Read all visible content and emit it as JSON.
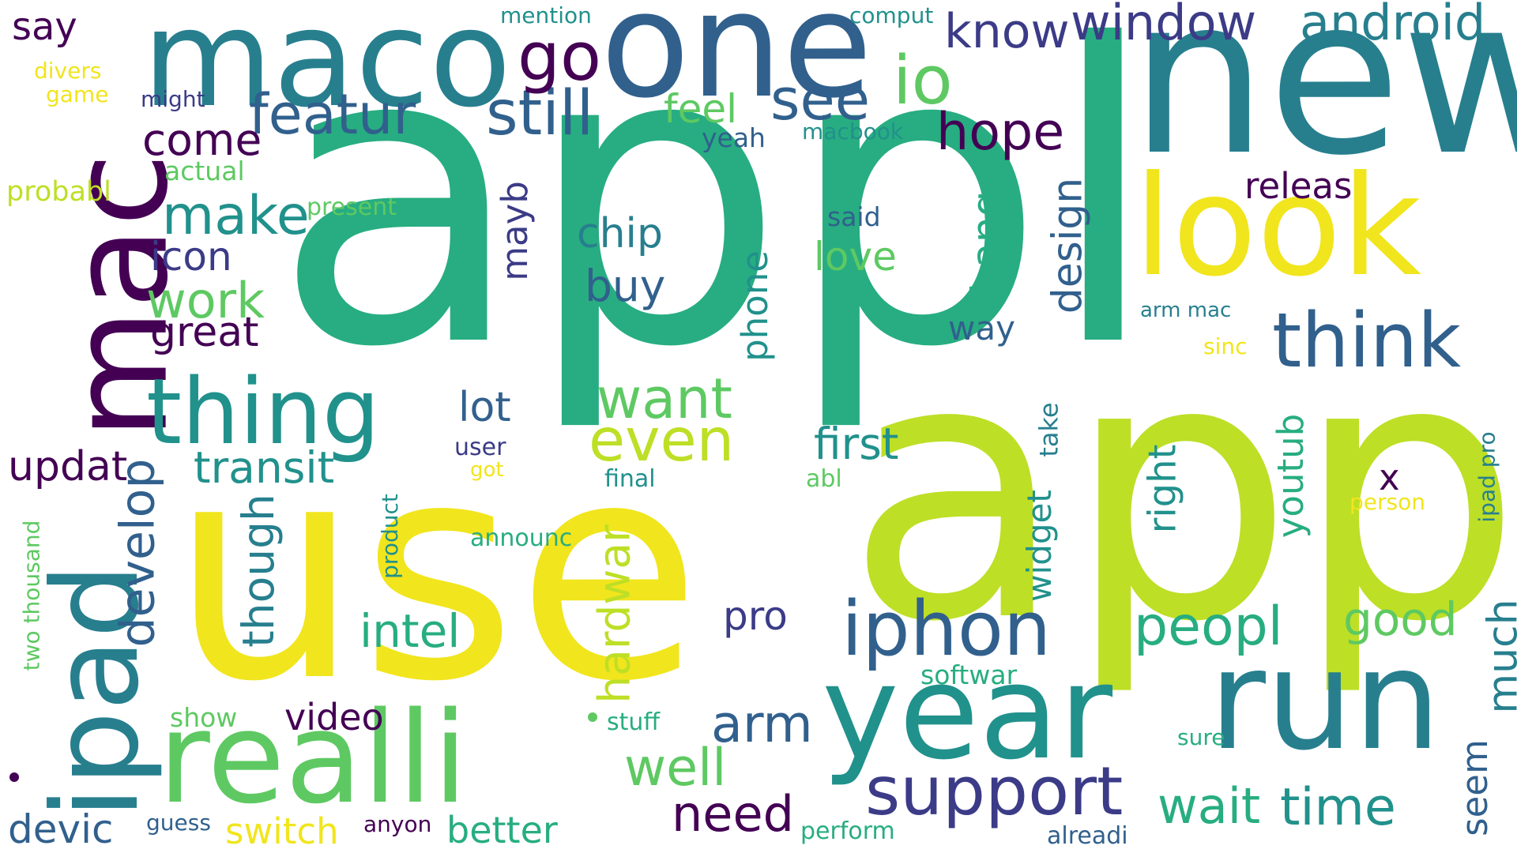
{
  "palette": {
    "dark_purple": "#440154",
    "indigo": "#3b3b87",
    "blue": "#31608d",
    "teal_blue": "#277f8e",
    "teal": "#21918c",
    "green_teal": "#27ad81",
    "green": "#5ec962",
    "lime": "#bddf26",
    "yellow": "#f1e51d"
  },
  "words": [
    {
      "text": "appl",
      "color": "#27ad81"
    },
    {
      "text": "app",
      "color": "#bddf26"
    },
    {
      "text": "use",
      "color": "#f1e51d"
    },
    {
      "text": "new",
      "color": "#277f8e"
    },
    {
      "text": "mac",
      "color": "#440154"
    },
    {
      "text": "maco",
      "color": "#277f8e"
    },
    {
      "text": "one",
      "color": "#31608d"
    },
    {
      "text": "look",
      "color": "#f1e51d"
    },
    {
      "text": "ipad",
      "color": "#277f8e"
    },
    {
      "text": "realli",
      "color": "#5ec962"
    },
    {
      "text": "year",
      "color": "#21918c"
    },
    {
      "text": "run",
      "color": "#277f8e"
    },
    {
      "text": "thing",
      "color": "#21918c"
    },
    {
      "text": "think",
      "color": "#31608d"
    },
    {
      "text": "iphon",
      "color": "#31608d"
    },
    {
      "text": "support",
      "color": "#3b3b87"
    },
    {
      "text": "featur",
      "color": "#31608d"
    },
    {
      "text": "still",
      "color": "#31608d"
    },
    {
      "text": "go",
      "color": "#440154"
    },
    {
      "text": "see",
      "color": "#31608d"
    },
    {
      "text": "io",
      "color": "#5ec962"
    },
    {
      "text": "know",
      "color": "#3b3b87"
    },
    {
      "text": "window",
      "color": "#3b3b87"
    },
    {
      "text": "android",
      "color": "#277f8e"
    },
    {
      "text": "hope",
      "color": "#440154"
    },
    {
      "text": "want",
      "color": "#5ec962"
    },
    {
      "text": "even",
      "color": "#bddf26"
    },
    {
      "text": "make",
      "color": "#21918c"
    },
    {
      "text": "work",
      "color": "#5ec962"
    },
    {
      "text": "come",
      "color": "#440154"
    },
    {
      "text": "great",
      "color": "#440154"
    },
    {
      "text": "icon",
      "color": "#3b3b87"
    },
    {
      "text": "chip",
      "color": "#277f8e"
    },
    {
      "text": "buy",
      "color": "#31608d"
    },
    {
      "text": "love",
      "color": "#5ec962"
    },
    {
      "text": "first",
      "color": "#21918c"
    },
    {
      "text": "lot",
      "color": "#31608d"
    },
    {
      "text": "transit",
      "color": "#21918c"
    },
    {
      "text": "updat",
      "color": "#440154"
    },
    {
      "text": "develop",
      "color": "#31608d"
    },
    {
      "text": "though",
      "color": "#277f8e"
    },
    {
      "text": "intel",
      "color": "#27ad81"
    },
    {
      "text": "hardwar",
      "color": "#bddf26"
    },
    {
      "text": "pro",
      "color": "#3b3b87"
    },
    {
      "text": "arm",
      "color": "#31608d"
    },
    {
      "text": "well",
      "color": "#5ec962"
    },
    {
      "text": "need",
      "color": "#440154"
    },
    {
      "text": "peopl",
      "color": "#27ad81"
    },
    {
      "text": "good",
      "color": "#5ec962"
    },
    {
      "text": "much",
      "color": "#277f8e"
    },
    {
      "text": "wait",
      "color": "#27ad81"
    },
    {
      "text": "time",
      "color": "#21918c"
    },
    {
      "text": "seem",
      "color": "#31608d"
    },
    {
      "text": "video",
      "color": "#440154"
    },
    {
      "text": "devic",
      "color": "#31608d"
    },
    {
      "text": "switch",
      "color": "#f1e51d"
    },
    {
      "text": "better",
      "color": "#27ad81"
    },
    {
      "text": "feel",
      "color": "#5ec962"
    },
    {
      "text": "releas",
      "color": "#440154"
    },
    {
      "text": "design",
      "color": "#31608d"
    },
    {
      "text": "chang",
      "color": "#27ad81"
    },
    {
      "text": "mayb",
      "color": "#3b3b87"
    },
    {
      "text": "phone",
      "color": "#21918c"
    },
    {
      "text": "right",
      "color": "#21918c"
    },
    {
      "text": "youtub",
      "color": "#27ad81"
    },
    {
      "text": "widget",
      "color": "#21918c"
    },
    {
      "text": "take",
      "color": "#277f8e"
    },
    {
      "text": "way",
      "color": "#31608d"
    },
    {
      "text": "say",
      "color": "#440154"
    },
    {
      "text": "x",
      "color": "#440154"
    },
    {
      "text": "mention",
      "color": "#21918c"
    },
    {
      "text": "comput",
      "color": "#21918c"
    },
    {
      "text": "divers",
      "color": "#f1e51d"
    },
    {
      "text": "game",
      "color": "#f1e51d"
    },
    {
      "text": "might",
      "color": "#3b3b87"
    },
    {
      "text": "yeah",
      "color": "#31608d"
    },
    {
      "text": "macbook",
      "color": "#21918c"
    },
    {
      "text": "actual",
      "color": "#5ec962"
    },
    {
      "text": "probabl",
      "color": "#bddf26"
    },
    {
      "text": "present",
      "color": "#5ec962"
    },
    {
      "text": "said",
      "color": "#31608d"
    },
    {
      "text": "arm mac",
      "color": "#277f8e"
    },
    {
      "text": "sinc",
      "color": "#f1e51d"
    },
    {
      "text": "user",
      "color": "#3b3b87"
    },
    {
      "text": "got",
      "color": "#f1e51d"
    },
    {
      "text": "final",
      "color": "#21918c"
    },
    {
      "text": "abl",
      "color": "#5ec962"
    },
    {
      "text": "person",
      "color": "#f1e51d"
    },
    {
      "text": "ipad pro",
      "color": "#277f8e"
    },
    {
      "text": "announc",
      "color": "#27ad81"
    },
    {
      "text": "product",
      "color": "#21918c"
    },
    {
      "text": "two thousand",
      "color": "#5ec962"
    },
    {
      "text": "softwar",
      "color": "#27ad81"
    },
    {
      "text": "show",
      "color": "#5ec962"
    },
    {
      "text": "stuff",
      "color": "#27ad81"
    },
    {
      "text": "sure",
      "color": "#27ad81"
    },
    {
      "text": "guess",
      "color": "#31608d"
    },
    {
      "text": "anyon",
      "color": "#440154"
    },
    {
      "text": "perform",
      "color": "#27ad81"
    },
    {
      "text": "alreadi",
      "color": "#31608d"
    }
  ]
}
